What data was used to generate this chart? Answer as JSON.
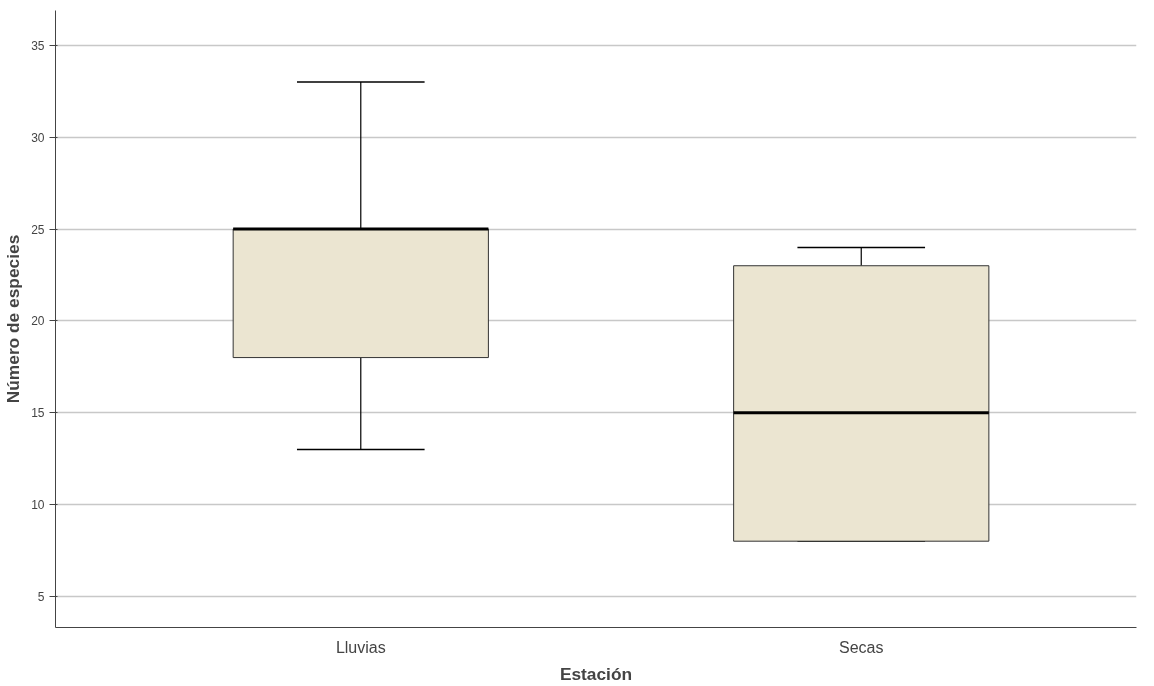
{
  "chart_data": {
    "type": "box",
    "xlabel": "Estación",
    "ylabel": "Número de especies",
    "categories": [
      "Lluvias",
      "Secas"
    ],
    "boxes": [
      {
        "low": 13,
        "q1": 18,
        "median": 25,
        "q3": 25,
        "high": 33
      },
      {
        "low": 8,
        "q1": 8,
        "median": 15,
        "q3": 23,
        "high": 24
      }
    ],
    "color": "#ebe5d1",
    "ylim": [
      3.3,
      36.9
    ],
    "yticks": [
      5,
      10,
      15,
      20,
      25,
      30,
      35
    ],
    "grid": "y"
  }
}
